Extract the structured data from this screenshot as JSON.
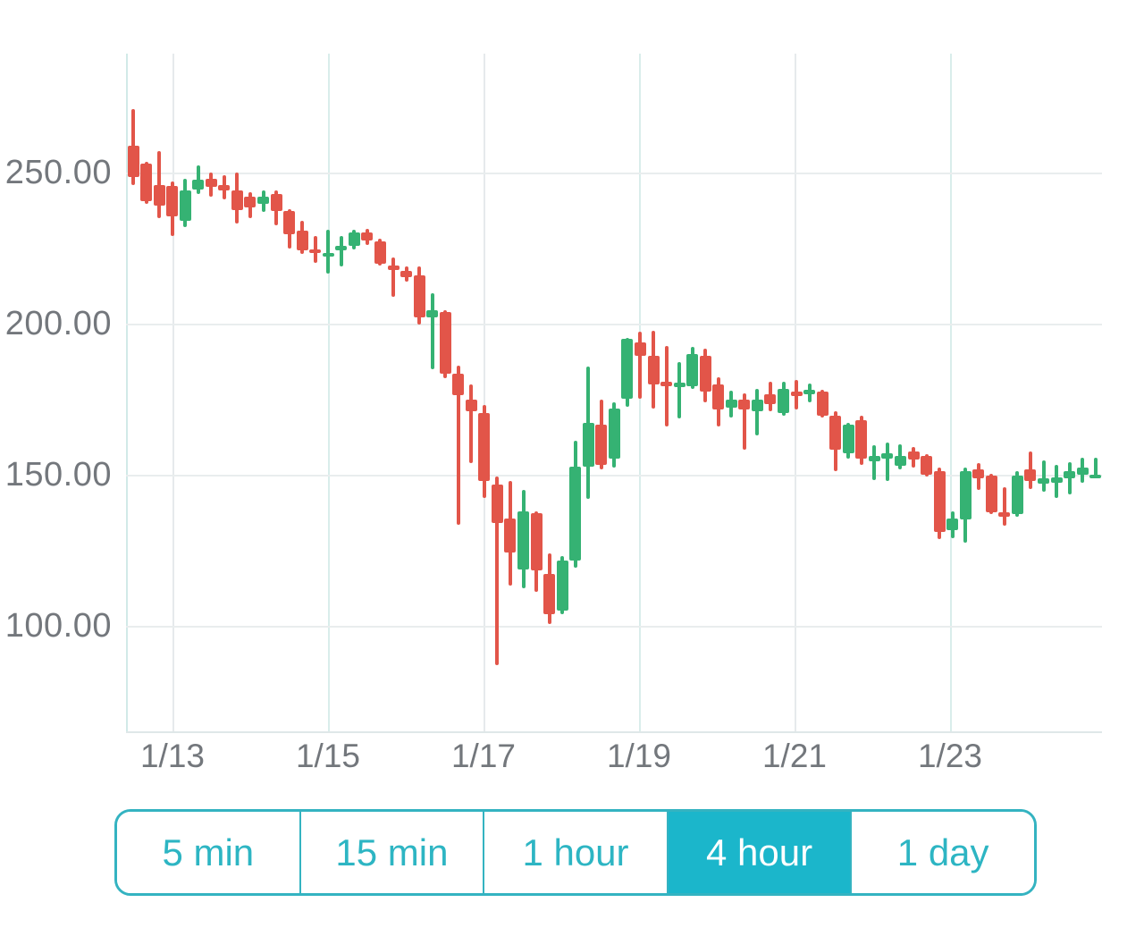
{
  "chart_data": {
    "type": "candlestick",
    "title": "",
    "ylabel": "",
    "xlabel": "",
    "y_tick_labels": [
      "250.00",
      "200.00",
      "150.00",
      "100.00"
    ],
    "y_tick_values": [
      250,
      200,
      150,
      100
    ],
    "x_tick_labels": [
      "1/13",
      "1/15",
      "1/17",
      "1/19",
      "1/21",
      "1/23"
    ],
    "visible_value_range": [
      65,
      289
    ],
    "interval_per_candle": "4 hour",
    "grid": "on",
    "up_color": "#35b273",
    "down_color": "#e25549",
    "ohlc": [
      [
        259.0,
        271.0,
        246.0,
        248.5
      ],
      [
        253.0,
        253.5,
        239.5,
        240.5
      ],
      [
        246.0,
        257.0,
        235.0,
        239.0
      ],
      [
        245.5,
        247.0,
        229.0,
        235.5
      ],
      [
        234.0,
        248.0,
        232.0,
        244.0
      ],
      [
        244.3,
        252.5,
        243.0,
        247.5
      ],
      [
        248.0,
        250.0,
        242.0,
        245.3
      ],
      [
        246.0,
        249.0,
        241.0,
        244.0
      ],
      [
        244.0,
        250.0,
        233.0,
        237.5
      ],
      [
        242.0,
        243.5,
        235.0,
        238.5
      ],
      [
        239.5,
        244.0,
        237.0,
        242.0
      ],
      [
        243.0,
        244.0,
        232.5,
        237.3
      ],
      [
        237.3,
        238.0,
        225.0,
        229.7
      ],
      [
        230.7,
        234.0,
        223.0,
        224.3
      ],
      [
        224.5,
        229.0,
        220.0,
        223.5
      ],
      [
        222.3,
        231.0,
        216.5,
        223.4
      ],
      [
        224.3,
        229.0,
        219.0,
        225.7
      ],
      [
        225.7,
        231.2,
        224.5,
        230.2
      ],
      [
        230.2,
        231.5,
        226.0,
        227.4
      ],
      [
        227.2,
        228.2,
        219.3,
        219.8
      ],
      [
        219.3,
        221.8,
        209.0,
        217.8
      ],
      [
        217.5,
        219.0,
        214.0,
        215.4
      ],
      [
        215.9,
        218.8,
        199.8,
        202.1
      ],
      [
        202.1,
        210.0,
        185.0,
        204.5
      ],
      [
        203.8,
        204.5,
        182.0,
        183.3
      ],
      [
        183.5,
        186.0,
        133.5,
        176.4
      ],
      [
        175.0,
        180.0,
        153.8,
        171.0
      ],
      [
        170.5,
        173.0,
        142.4,
        147.8
      ],
      [
        146.8,
        149.3,
        87.0,
        134.0
      ],
      [
        135.5,
        147.9,
        113.3,
        124.2
      ],
      [
        118.7,
        144.9,
        112.3,
        137.9
      ],
      [
        137.3,
        138.0,
        111.3,
        118.2
      ],
      [
        117.2,
        124.1,
        100.5,
        103.9
      ],
      [
        104.9,
        123.1,
        103.9,
        121.6
      ],
      [
        121.6,
        161.1,
        119.2,
        152.7
      ],
      [
        152.7,
        185.8,
        141.9,
        167.1
      ],
      [
        166.6,
        175.0,
        151.8,
        153.3
      ],
      [
        155.2,
        174.0,
        152.3,
        172.0
      ],
      [
        175.0,
        195.2,
        172.5,
        194.9
      ],
      [
        193.7,
        197.2,
        175.0,
        189.3
      ],
      [
        189.3,
        197.6,
        172.0,
        179.9
      ],
      [
        180.9,
        192.7,
        166.1,
        179.4
      ],
      [
        178.9,
        187.3,
        168.5,
        180.4
      ],
      [
        179.4,
        192.2,
        178.4,
        189.8
      ],
      [
        189.3,
        191.7,
        174.0,
        177.4
      ],
      [
        179.9,
        182.3,
        166.1,
        171.5
      ],
      [
        172.2,
        177.7,
        169.0,
        175.0
      ],
      [
        175.0,
        176.9,
        158.2,
        171.5
      ],
      [
        171.0,
        178.4,
        163.1,
        175.0
      ],
      [
        176.5,
        180.9,
        171.0,
        173.5
      ],
      [
        170.5,
        180.9,
        169.5,
        178.4
      ],
      [
        177.4,
        181.4,
        171.5,
        175.9
      ],
      [
        176.5,
        180.1,
        174.0,
        178.1
      ],
      [
        177.4,
        178.0,
        168.9,
        169.5
      ],
      [
        169.5,
        171.0,
        151.3,
        158.2
      ],
      [
        157.2,
        167.1,
        155.2,
        166.6
      ],
      [
        168.0,
        169.5,
        153.3,
        155.2
      ],
      [
        154.4,
        159.7,
        148.3,
        156.2
      ],
      [
        155.4,
        160.7,
        147.8,
        157.2
      ],
      [
        152.9,
        160.2,
        151.8,
        156.2
      ],
      [
        157.7,
        159.2,
        152.3,
        154.9
      ],
      [
        156.2,
        156.7,
        149.3,
        149.9
      ],
      [
        151.3,
        152.3,
        128.6,
        131.1
      ],
      [
        131.6,
        138.0,
        129.1,
        135.5
      ],
      [
        135.2,
        152.3,
        127.6,
        151.3
      ],
      [
        151.8,
        153.8,
        144.9,
        148.9
      ],
      [
        149.8,
        150.3,
        137.0,
        137.6
      ],
      [
        137.5,
        145.9,
        133.1,
        136.1
      ],
      [
        137.1,
        151.3,
        136.0,
        149.8
      ],
      [
        151.8,
        157.7,
        145.4,
        147.9
      ],
      [
        146.9,
        154.7,
        144.4,
        148.8
      ],
      [
        147.4,
        153.3,
        142.4,
        149.1
      ],
      [
        148.9,
        154.2,
        143.4,
        151.3
      ],
      [
        149.9,
        155.7,
        147.3,
        152.3
      ],
      [
        149.6,
        155.5,
        148.9,
        150.1
      ]
    ]
  },
  "toolbar": {
    "selected": "4 hour",
    "accent_color": "#1bb6cb",
    "buttons": [
      {
        "label": "5 min",
        "selected": false
      },
      {
        "label": "15 min",
        "selected": false
      },
      {
        "label": "1 hour",
        "selected": false
      },
      {
        "label": "4 hour",
        "selected": true
      },
      {
        "label": "1 day",
        "selected": false
      }
    ]
  }
}
